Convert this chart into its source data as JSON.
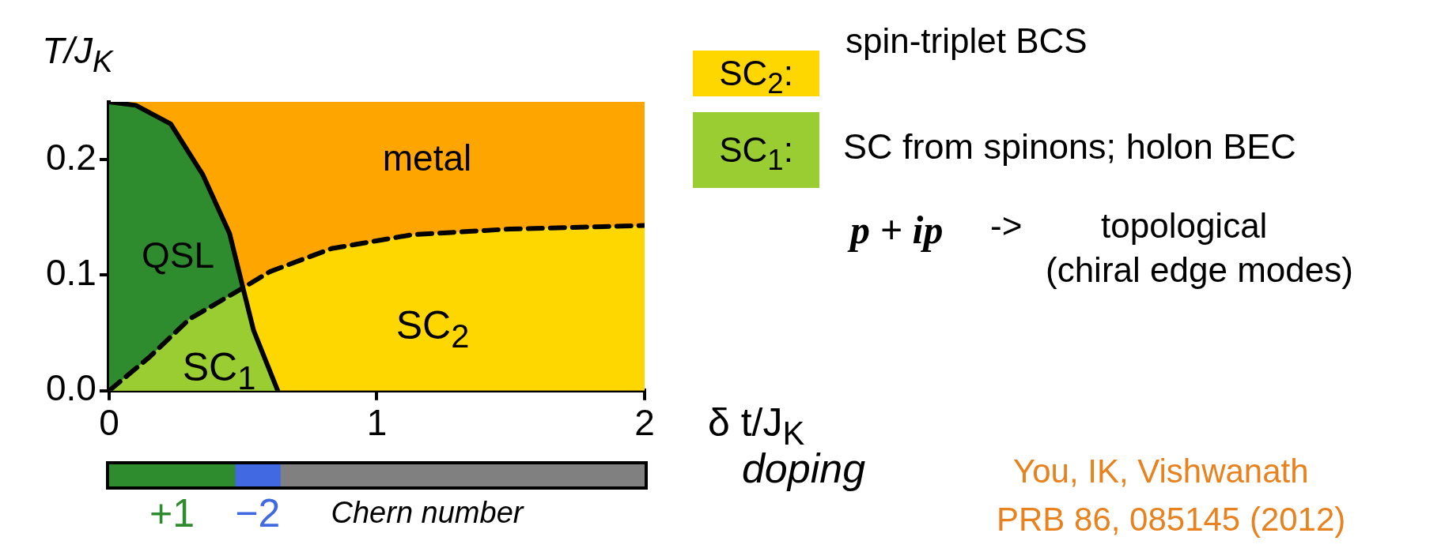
{
  "chart_data": [
    {
      "type": "area",
      "ylabel": "T/J$_{K}$",
      "xlabel": "δ t/J$_{K}$",
      "xlim": [
        0,
        2
      ],
      "ylim": [
        0,
        0.25
      ],
      "xticks": [
        0,
        1,
        2
      ],
      "yticks": [
        {
          "value": 0,
          "label": "0.0"
        },
        {
          "value": 0.1,
          "label": "0.1"
        },
        {
          "value": 0.2,
          "label": "0.2"
        }
      ],
      "grid": false,
      "legend": false,
      "bands": [
        {
          "axis": "y",
          "from": 0,
          "to": 0.25,
          "color": "#ffa500",
          "label": "metal"
        }
      ],
      "series": [
        {
          "type": "area",
          "color": "#9acd32",
          "x": [
            0,
            0.15,
            0.3,
            0.5,
            0.54,
            0.63
          ],
          "values": [
            0,
            0.029,
            0.062,
            0.089,
            0.052,
            0
          ]
        },
        {
          "type": "area",
          "color": "#2e8b2e",
          "line_style": "solid",
          "x": [
            0,
            0.1,
            0.23,
            0.35,
            0.45,
            0.5,
            0.54,
            0.63
          ],
          "values": [
            0.25,
            0.247,
            0.231,
            0.187,
            0.136,
            0.089,
            0.052,
            0
          ]
        },
        {
          "type": "area",
          "color": "#ffd700",
          "line_style": "dashed",
          "x": [
            0,
            0.15,
            0.3,
            0.5,
            0.6,
            0.83,
            1.13,
            1.5,
            2
          ],
          "values": [
            0,
            0.029,
            0.062,
            0.089,
            0.103,
            0.123,
            0.135,
            0.14,
            0.143
          ]
        }
      ],
      "annotations": [
        "QSL",
        "SC$_{2}$",
        "SC$_{1}$",
        "doping",
        "SC$_{2}$:",
        "spin-triplet BCS",
        "SC$_{1}$:",
        "SC from spinons; holon BEC",
        "p + ip",
        "->",
        "topological",
        "(chiral edge modes)",
        "You, IK, Vishwanath",
        "PRB 86, 085145 (2012)"
      ]
    },
    {
      "type": "bar",
      "orientation": "horizontal",
      "stacked": true,
      "categories": [
        null
      ],
      "xlim": [
        0,
        2
      ],
      "tick_labels": false,
      "legend": false,
      "series": [
        {
          "color": "#2e8b2e",
          "values": [
            0.47
          ]
        },
        {
          "color": "#4169e1",
          "values": [
            0.17
          ]
        },
        {
          "color": "#808080",
          "values": [
            1.36
          ]
        }
      ],
      "annotations": [
        "+1",
        "−2",
        "Chern number"
      ]
    }
  ]
}
